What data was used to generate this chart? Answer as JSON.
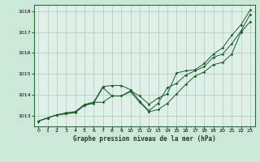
{
  "title": "Graphe pression niveau de la mer (hPa)",
  "background_color": "#cce8d8",
  "plot_background": "#dff0e8",
  "grid_color": "#b0c8bc",
  "line_color": "#1a5c2a",
  "xlim": [
    -0.5,
    23.5
  ],
  "ylim": [
    1012.5,
    1018.3
  ],
  "yticks": [
    1013,
    1014,
    1015,
    1016,
    1017,
    1018
  ],
  "xticks": [
    0,
    1,
    2,
    3,
    4,
    5,
    6,
    7,
    8,
    9,
    10,
    11,
    12,
    13,
    14,
    15,
    16,
    17,
    18,
    19,
    20,
    21,
    22,
    23
  ],
  "series1": [
    1012.75,
    1012.9,
    1013.05,
    1013.1,
    1013.15,
    1013.5,
    1013.6,
    1014.35,
    1013.95,
    1013.95,
    1014.15,
    1013.65,
    1013.2,
    1013.3,
    1013.6,
    1014.05,
    1014.5,
    1014.9,
    1015.1,
    1015.45,
    1015.55,
    1015.95,
    1017.0,
    1017.5
  ],
  "series2": [
    1012.75,
    1012.9,
    1013.05,
    1013.1,
    1013.2,
    1013.5,
    1013.65,
    1014.4,
    1014.45,
    1014.45,
    1014.25,
    1013.7,
    1013.25,
    1013.6,
    1014.35,
    1014.55,
    1014.95,
    1015.15,
    1015.35,
    1015.8,
    1015.95,
    1016.45,
    1017.05,
    1017.85
  ],
  "series3": [
    1012.75,
    1012.9,
    1013.05,
    1013.15,
    1013.2,
    1013.55,
    1013.65,
    1013.65,
    1013.95,
    1013.95,
    1014.2,
    1013.95,
    1013.55,
    1013.85,
    1014.05,
    1015.05,
    1015.15,
    1015.2,
    1015.5,
    1015.95,
    1016.25,
    1016.85,
    1017.35,
    1018.05
  ]
}
